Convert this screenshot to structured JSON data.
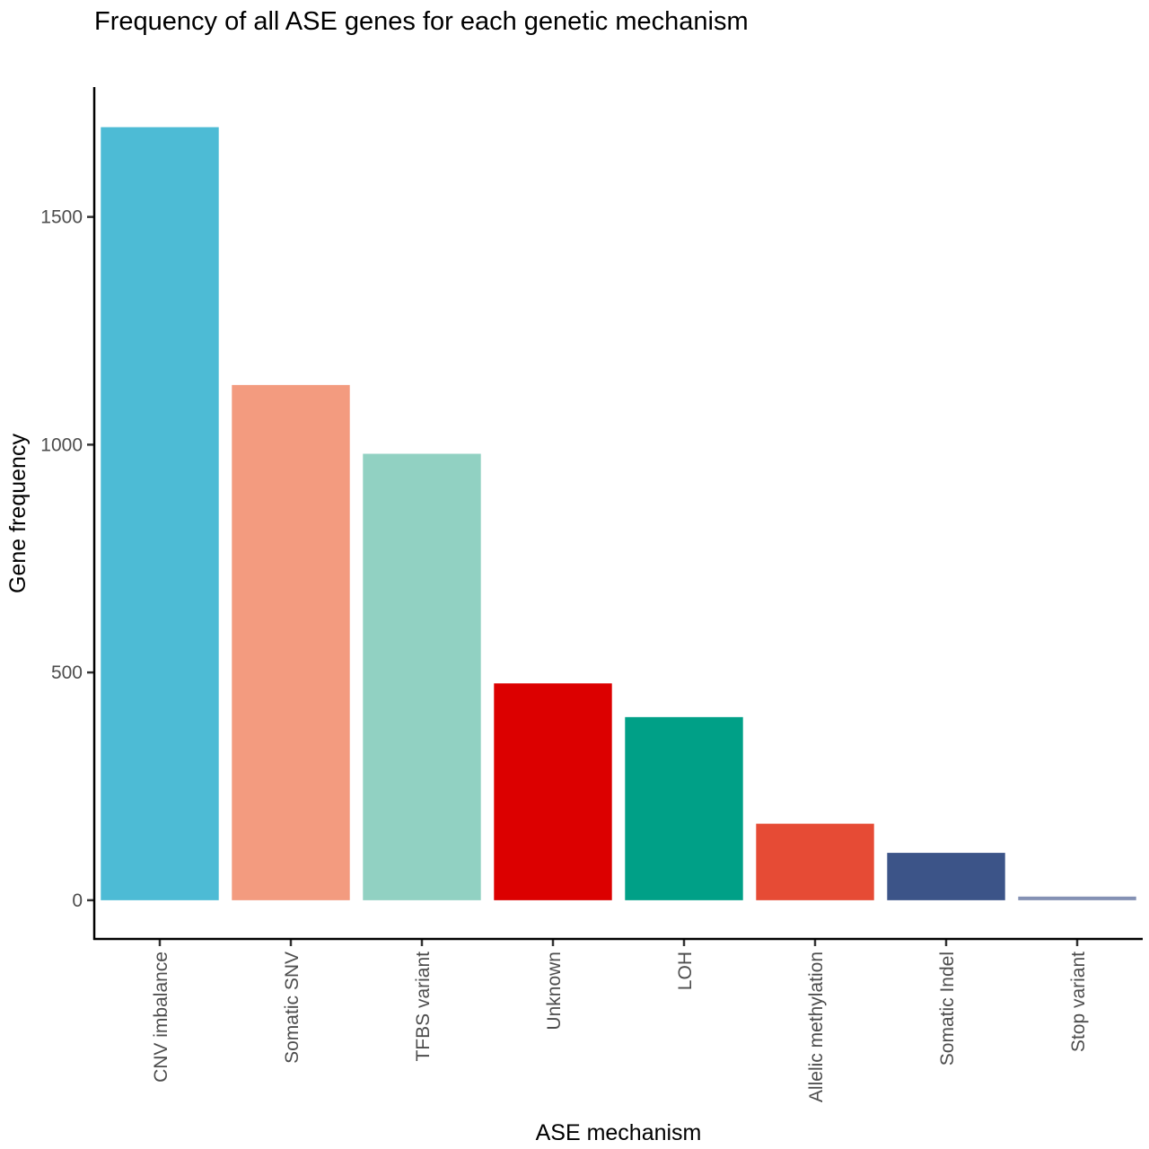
{
  "chart_data": {
    "type": "bar",
    "title": "Frequency of all ASE genes for each genetic mechanism",
    "xlabel": "ASE mechanism",
    "ylabel": "Gene frequency",
    "categories": [
      "CNV imbalance",
      "Somatic SNV",
      "TFBS variant",
      "Unknown",
      "LOH",
      "Allelic methylation",
      "Somatic Indel",
      "Stop variant"
    ],
    "values": [
      1697,
      1131,
      980,
      476,
      402,
      168,
      104,
      8
    ],
    "colors": [
      "#4DBBD5",
      "#F39B7F",
      "#91D1C2",
      "#DC0000",
      "#00A087",
      "#E64B35",
      "#3C5488",
      "#8491B4"
    ],
    "yticks": [
      0,
      500,
      1000,
      1500
    ],
    "ylim": [
      -85,
      1785
    ],
    "grid": false,
    "legend": "none"
  }
}
